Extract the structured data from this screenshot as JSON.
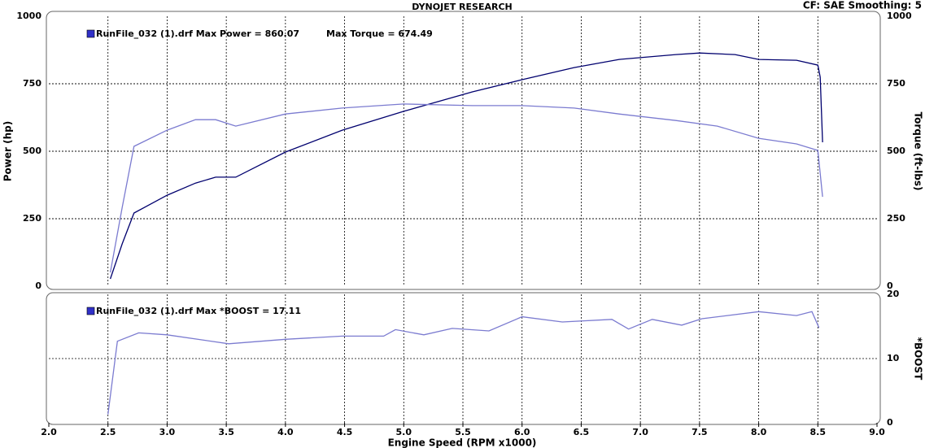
{
  "chart_data": [
    {
      "type": "line",
      "title": "DYNOJET RESEARCH",
      "subtitle": "CF: SAE  Smoothing: 5",
      "legend": [
        "RunFile_032 (1).drf Max Power = 860.07",
        "Max Torque = 674.49"
      ],
      "ylabel": "Power (hp)",
      "y2label": "Torque (ft-lbs)",
      "ylim": [
        0,
        1000
      ],
      "yticks": [
        0,
        250,
        500,
        750,
        1000
      ],
      "y2lim": [
        0,
        1000
      ],
      "y2ticks": [
        0,
        250,
        500,
        750,
        1000
      ],
      "grid": true,
      "series": [
        {
          "color": "#00006e",
          "x": [
            2.52,
            2.62,
            2.72,
            3.0,
            3.24,
            3.41,
            3.58,
            4.0,
            4.48,
            5.0,
            5.58,
            6.0,
            6.44,
            6.82,
            7.3,
            7.5,
            7.8,
            8.0,
            8.32,
            8.5,
            8.52,
            8.54
          ],
          "values": [
            27,
            157,
            271,
            337,
            382,
            404,
            404,
            497,
            578,
            648,
            720,
            765,
            810,
            840,
            858,
            864,
            858,
            840,
            837,
            819,
            774,
            533
          ]
        },
        {
          "color": "#7b7bd0",
          "axis": "y2",
          "x": [
            2.52,
            2.62,
            2.72,
            3.0,
            3.24,
            3.41,
            3.58,
            4.0,
            4.48,
            5.0,
            5.58,
            6.0,
            6.44,
            6.82,
            7.3,
            7.65,
            8.0,
            8.32,
            8.5,
            8.54
          ],
          "values": [
            51,
            292,
            518,
            578,
            617,
            617,
            593,
            638,
            660,
            675,
            669,
            669,
            660,
            638,
            614,
            593,
            548,
            527,
            503,
            331
          ]
        }
      ]
    },
    {
      "type": "line",
      "legend": [
        "RunFile_032 (1).drf Max *BOOST = 17.11"
      ],
      "y2label": "*BOOST",
      "xlabel": "Engine Speed (RPM x1000)",
      "xlim": [
        2,
        9
      ],
      "xticks": [
        {
          "value": 2,
          "label": "2.0"
        },
        {
          "value": 2.5,
          "label": "2.5"
        },
        {
          "value": 3,
          "label": "3.0"
        },
        {
          "value": 3.5,
          "label": "3.5"
        },
        {
          "value": 4,
          "label": "4.0"
        },
        {
          "value": 4.5,
          "label": "4.5"
        },
        {
          "value": 5,
          "label": "5.0"
        },
        {
          "value": 5.5,
          "label": "5.5"
        },
        {
          "value": 6,
          "label": "6.0"
        },
        {
          "value": 6.5,
          "label": "6.5"
        },
        {
          "value": 7,
          "label": "7.0"
        },
        {
          "value": 7.5,
          "label": "7.5"
        },
        {
          "value": 8,
          "label": "8.0"
        },
        {
          "value": 8.5,
          "label": "8.5"
        },
        {
          "value": 9,
          "label": "9.0"
        }
      ],
      "y2lim": [
        0,
        20
      ],
      "y2ticks": [
        0,
        10,
        20
      ],
      "grid": true,
      "series": [
        {
          "color": "#7b7bd0",
          "axis": "y2",
          "x": [
            2.5,
            2.58,
            2.76,
            3.0,
            3.52,
            4.0,
            4.48,
            4.83,
            4.93,
            5.17,
            5.41,
            5.72,
            6.0,
            6.34,
            6.76,
            6.9,
            7.1,
            7.35,
            7.52,
            8.0,
            8.32,
            8.45,
            8.51
          ],
          "values": [
            1.3,
            12.7,
            14,
            13.7,
            12.3,
            13,
            13.5,
            13.5,
            14.5,
            13.7,
            14.7,
            14.3,
            16.5,
            15.7,
            16.1,
            14.6,
            16.1,
            15.2,
            16.2,
            17.3,
            16.7,
            17.3,
            14.8
          ]
        }
      ]
    }
  ]
}
